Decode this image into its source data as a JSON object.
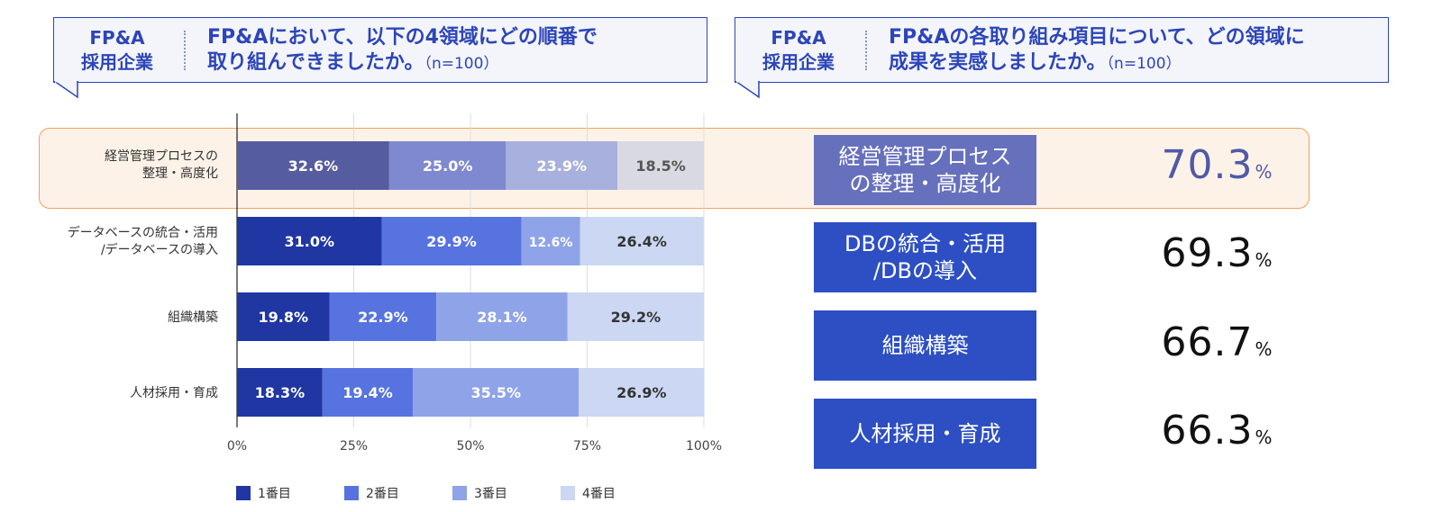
{
  "callouts": [
    {
      "tag_line1": "FP&A",
      "tag_line2": "採用企業",
      "question_line1": "FP&Aにおいて、以下の4領域にどの順番で",
      "question_line2": "取り組んできましたか。",
      "n_text": "（n=100）"
    },
    {
      "tag_line1": "FP&A",
      "tag_line2": "採用企業",
      "question_line1": "FP&Aの各取り組み項目について、どの領域に",
      "question_line2": "成果を実感しましたか。",
      "n_text": "（n=100）"
    }
  ],
  "colors": {
    "rank1": "#1f36a3",
    "rank2": "#5773e0",
    "rank3": "#8fa3e8",
    "rank4": "#cbd7f3",
    "highlight_rank1": "#555c9f",
    "highlight_rank2": "#7f89cf",
    "highlight_rank3": "#a8b0dd",
    "highlight_rank4": "#d9d9e3",
    "callout_border": "#2d45b9",
    "highlight_border": "#f0a15a",
    "highlight_fill": "#fdf2e8",
    "box_fill": "#2d4fc3",
    "highlight_box_fill": "#6670bd",
    "highlight_pct_color": "#4f5aa6"
  },
  "chart_data": {
    "type": "bar",
    "orientation": "horizontal",
    "stacked": true,
    "categories": [
      [
        "経営管理プロセスの",
        "整理・高度化"
      ],
      [
        "データベースの統合・活用",
        "/データベースの導入"
      ],
      [
        "組織構築"
      ],
      [
        "人材採用・育成"
      ]
    ],
    "series": [
      {
        "name": "1番目",
        "values": [
          32.6,
          31.0,
          19.8,
          18.3
        ],
        "labels": [
          "32.6%",
          "31.0%",
          "19.8%",
          "18.3%"
        ]
      },
      {
        "name": "2番目",
        "values": [
          25.0,
          29.9,
          22.9,
          19.4
        ],
        "labels": [
          "25.0%",
          "29.9%",
          "22.9%",
          "19.4%"
        ]
      },
      {
        "name": "3番目",
        "values": [
          23.9,
          12.6,
          28.1,
          35.5
        ],
        "labels": [
          "23.9%",
          "12.6%",
          "28.1%",
          "35.5%"
        ]
      },
      {
        "name": "4番目",
        "values": [
          18.5,
          26.4,
          29.2,
          26.9
        ],
        "labels": [
          "18.5%",
          "26.4%",
          "29.2%",
          "26.9%"
        ]
      }
    ],
    "xlim": [
      0,
      100
    ],
    "xticks": [
      "0%",
      "25%",
      "50%",
      "75%",
      "100%"
    ],
    "grid": true,
    "legend_position": "bottom",
    "highlighted_category_index": 0
  },
  "results": [
    {
      "label_line1": "経営管理プロセス",
      "label_line2": "の整理・高度化",
      "value": "70.3",
      "unit": "%",
      "highlighted": true
    },
    {
      "label_line1": "DBの統合・活用",
      "label_line2": "/DBの導入",
      "value": "69.3",
      "unit": "%",
      "highlighted": false
    },
    {
      "label_line1": "組織構築",
      "label_line2": "",
      "value": "66.7",
      "unit": "%",
      "highlighted": false
    },
    {
      "label_line1": "人材採用・育成",
      "label_line2": "",
      "value": "66.3",
      "unit": "%",
      "highlighted": false
    }
  ]
}
